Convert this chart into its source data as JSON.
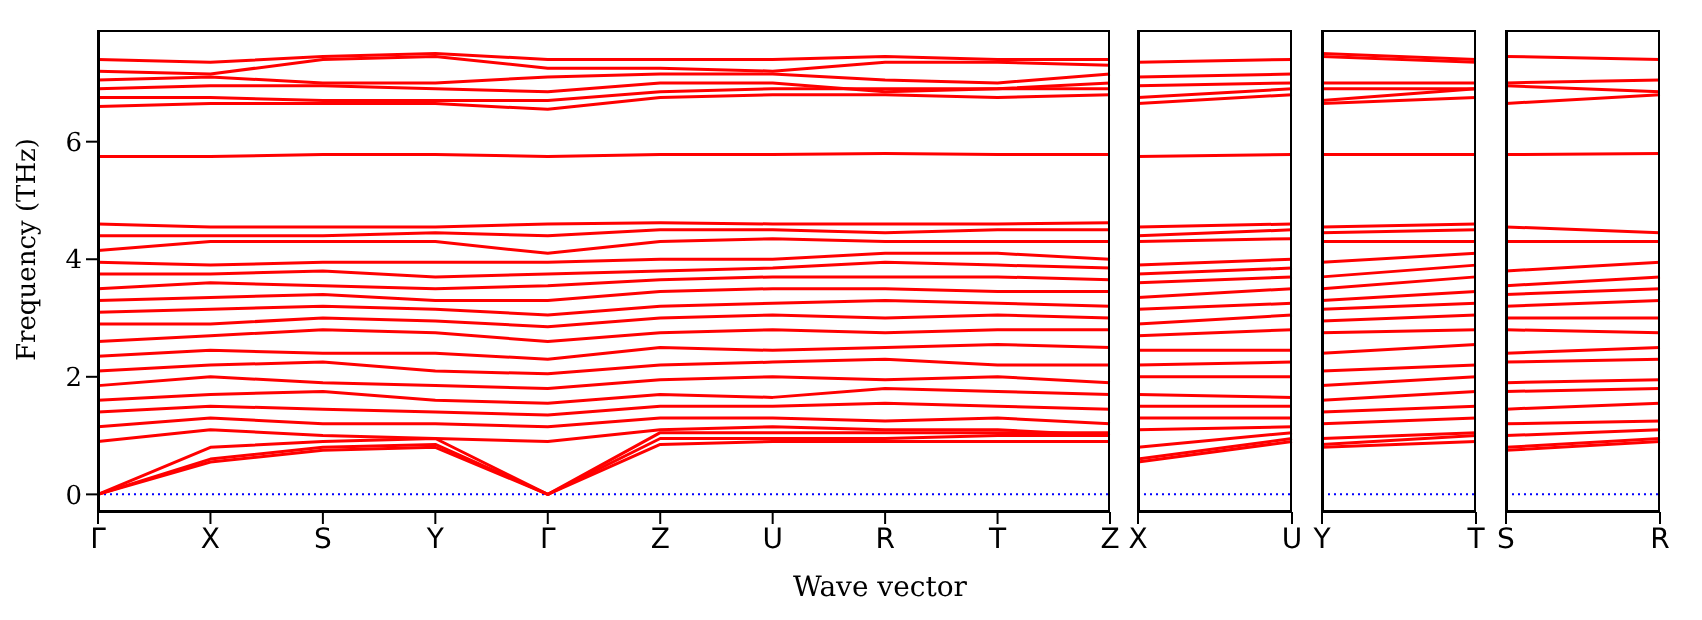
{
  "chart_data": [
    {
      "type": "line",
      "ylabel": "Frequency (THz)",
      "xlabel": "Wave vector",
      "categories": [
        "Γ",
        "X",
        "S",
        "Y",
        "Γ",
        "Z",
        "U",
        "R",
        "T",
        "Z"
      ],
      "ylim": [
        -0.3,
        7.9
      ],
      "yticks": [
        0,
        2,
        4,
        6
      ],
      "ref_lines": [
        {
          "axis": "y",
          "value": 0,
          "color": "#0000ff",
          "line_style": "dotted"
        }
      ],
      "series": [
        {
          "color": "#ff0000",
          "values": [
            0,
            0.55,
            0.75,
            0.8,
            0,
            0.85,
            0.9,
            0.9,
            0.9,
            0.9
          ]
        },
        {
          "color": "#ff0000",
          "values": [
            0,
            0.6,
            0.8,
            0.85,
            0,
            0.95,
            0.95,
            0.95,
            1.0,
            1.0
          ]
        },
        {
          "color": "#ff0000",
          "values": [
            0,
            0.8,
            0.9,
            0.95,
            0,
            1.05,
            1.05,
            1.05,
            1.05,
            1.05
          ]
        },
        {
          "color": "#ff0000",
          "values": [
            0.9,
            1.1,
            1.0,
            0.95,
            0.9,
            1.1,
            1.15,
            1.1,
            1.1,
            1.0
          ]
        },
        {
          "color": "#ff0000",
          "values": [
            1.15,
            1.3,
            1.2,
            1.2,
            1.15,
            1.3,
            1.3,
            1.25,
            1.3,
            1.2
          ]
        },
        {
          "color": "#ff0000",
          "values": [
            1.4,
            1.5,
            1.45,
            1.4,
            1.35,
            1.5,
            1.5,
            1.55,
            1.5,
            1.45
          ]
        },
        {
          "color": "#ff0000",
          "values": [
            1.6,
            1.7,
            1.75,
            1.6,
            1.55,
            1.7,
            1.65,
            1.8,
            1.75,
            1.7
          ]
        },
        {
          "color": "#ff0000",
          "values": [
            1.85,
            2.0,
            1.9,
            1.85,
            1.8,
            1.95,
            2.0,
            1.95,
            2.0,
            1.9
          ]
        },
        {
          "color": "#ff0000",
          "values": [
            2.1,
            2.2,
            2.25,
            2.1,
            2.05,
            2.2,
            2.25,
            2.3,
            2.2,
            2.2
          ]
        },
        {
          "color": "#ff0000",
          "values": [
            2.35,
            2.45,
            2.4,
            2.4,
            2.3,
            2.5,
            2.45,
            2.5,
            2.55,
            2.5
          ]
        },
        {
          "color": "#ff0000",
          "values": [
            2.6,
            2.7,
            2.8,
            2.75,
            2.6,
            2.75,
            2.8,
            2.75,
            2.8,
            2.8
          ]
        },
        {
          "color": "#ff0000",
          "values": [
            2.9,
            2.9,
            3.0,
            2.95,
            2.85,
            3.0,
            3.05,
            3.0,
            3.05,
            3.0
          ]
        },
        {
          "color": "#ff0000",
          "values": [
            3.1,
            3.15,
            3.2,
            3.15,
            3.05,
            3.2,
            3.25,
            3.3,
            3.25,
            3.2
          ]
        },
        {
          "color": "#ff0000",
          "values": [
            3.3,
            3.35,
            3.4,
            3.3,
            3.3,
            3.45,
            3.5,
            3.5,
            3.45,
            3.45
          ]
        },
        {
          "color": "#ff0000",
          "values": [
            3.5,
            3.6,
            3.55,
            3.5,
            3.55,
            3.65,
            3.7,
            3.7,
            3.7,
            3.65
          ]
        },
        {
          "color": "#ff0000",
          "values": [
            3.75,
            3.75,
            3.8,
            3.7,
            3.75,
            3.8,
            3.85,
            3.95,
            3.9,
            3.85
          ]
        },
        {
          "color": "#ff0000",
          "values": [
            3.95,
            3.9,
            3.95,
            3.95,
            3.95,
            4.0,
            4.0,
            4.1,
            4.1,
            4.0
          ]
        },
        {
          "color": "#ff0000",
          "values": [
            4.15,
            4.3,
            4.3,
            4.3,
            4.1,
            4.3,
            4.35,
            4.3,
            4.3,
            4.3
          ]
        },
        {
          "color": "#ff0000",
          "values": [
            4.4,
            4.4,
            4.4,
            4.45,
            4.4,
            4.5,
            4.5,
            4.45,
            4.5,
            4.5
          ]
        },
        {
          "color": "#ff0000",
          "values": [
            4.6,
            4.55,
            4.55,
            4.55,
            4.6,
            4.62,
            4.6,
            4.6,
            4.6,
            4.62
          ]
        },
        {
          "color": "#ff0000",
          "values": [
            5.75,
            5.75,
            5.78,
            5.78,
            5.75,
            5.78,
            5.78,
            5.8,
            5.78,
            5.78
          ]
        },
        {
          "color": "#ff0000",
          "values": [
            6.6,
            6.65,
            6.65,
            6.65,
            6.55,
            6.75,
            6.8,
            6.8,
            6.75,
            6.8
          ]
        },
        {
          "color": "#ff0000",
          "values": [
            6.75,
            6.75,
            6.7,
            6.7,
            6.7,
            6.85,
            6.9,
            6.9,
            6.9,
            6.9
          ]
        },
        {
          "color": "#ff0000",
          "values": [
            6.9,
            6.95,
            6.95,
            6.9,
            6.85,
            7.0,
            7.0,
            6.85,
            6.9,
            7.0
          ]
        },
        {
          "color": "#ff0000",
          "values": [
            7.05,
            7.1,
            7.0,
            7.0,
            7.1,
            7.15,
            7.15,
            7.05,
            7.0,
            7.15
          ]
        },
        {
          "color": "#ff0000",
          "values": [
            7.2,
            7.15,
            7.4,
            7.45,
            7.25,
            7.25,
            7.2,
            7.35,
            7.35,
            7.3
          ]
        },
        {
          "color": "#ff0000",
          "values": [
            7.4,
            7.35,
            7.45,
            7.5,
            7.4,
            7.4,
            7.4,
            7.45,
            7.4,
            7.4
          ]
        }
      ]
    },
    {
      "type": "line",
      "categories": [
        "X",
        "U"
      ],
      "tick_labels": "x",
      "ylim": [
        -0.3,
        7.9
      ],
      "ref_lines": [
        {
          "axis": "y",
          "value": 0,
          "color": "#0000ff",
          "line_style": "dotted"
        }
      ],
      "series": [
        {
          "color": "#ff0000",
          "values": [
            0.55,
            0.9
          ]
        },
        {
          "color": "#ff0000",
          "values": [
            0.6,
            0.95
          ]
        },
        {
          "color": "#ff0000",
          "values": [
            0.8,
            1.05
          ]
        },
        {
          "color": "#ff0000",
          "values": [
            1.1,
            1.15
          ]
        },
        {
          "color": "#ff0000",
          "values": [
            1.3,
            1.3
          ]
        },
        {
          "color": "#ff0000",
          "values": [
            1.5,
            1.5
          ]
        },
        {
          "color": "#ff0000",
          "values": [
            1.7,
            1.65
          ]
        },
        {
          "color": "#ff0000",
          "values": [
            2.0,
            2.0
          ]
        },
        {
          "color": "#ff0000",
          "values": [
            2.2,
            2.25
          ]
        },
        {
          "color": "#ff0000",
          "values": [
            2.45,
            2.45
          ]
        },
        {
          "color": "#ff0000",
          "values": [
            2.7,
            2.8
          ]
        },
        {
          "color": "#ff0000",
          "values": [
            2.9,
            3.05
          ]
        },
        {
          "color": "#ff0000",
          "values": [
            3.15,
            3.25
          ]
        },
        {
          "color": "#ff0000",
          "values": [
            3.35,
            3.5
          ]
        },
        {
          "color": "#ff0000",
          "values": [
            3.6,
            3.7
          ]
        },
        {
          "color": "#ff0000",
          "values": [
            3.75,
            3.85
          ]
        },
        {
          "color": "#ff0000",
          "values": [
            3.9,
            4.0
          ]
        },
        {
          "color": "#ff0000",
          "values": [
            4.3,
            4.35
          ]
        },
        {
          "color": "#ff0000",
          "values": [
            4.4,
            4.5
          ]
        },
        {
          "color": "#ff0000",
          "values": [
            4.55,
            4.6
          ]
        },
        {
          "color": "#ff0000",
          "values": [
            5.75,
            5.78
          ]
        },
        {
          "color": "#ff0000",
          "values": [
            6.65,
            6.8
          ]
        },
        {
          "color": "#ff0000",
          "values": [
            6.75,
            6.9
          ]
        },
        {
          "color": "#ff0000",
          "values": [
            6.95,
            7.0
          ]
        },
        {
          "color": "#ff0000",
          "values": [
            7.1,
            7.15
          ]
        },
        {
          "color": "#ff0000",
          "values": [
            7.35,
            7.4
          ]
        }
      ]
    },
    {
      "type": "line",
      "categories": [
        "Y",
        "T"
      ],
      "tick_labels": "x",
      "ylim": [
        -0.3,
        7.9
      ],
      "ref_lines": [
        {
          "axis": "y",
          "value": 0,
          "color": "#0000ff",
          "line_style": "dotted"
        }
      ],
      "series": [
        {
          "color": "#ff0000",
          "values": [
            0.8,
            0.9
          ]
        },
        {
          "color": "#ff0000",
          "values": [
            0.85,
            1.0
          ]
        },
        {
          "color": "#ff0000",
          "values": [
            0.95,
            1.05
          ]
        },
        {
          "color": "#ff0000",
          "values": [
            1.2,
            1.3
          ]
        },
        {
          "color": "#ff0000",
          "values": [
            1.4,
            1.5
          ]
        },
        {
          "color": "#ff0000",
          "values": [
            1.6,
            1.75
          ]
        },
        {
          "color": "#ff0000",
          "values": [
            1.85,
            2.0
          ]
        },
        {
          "color": "#ff0000",
          "values": [
            2.1,
            2.2
          ]
        },
        {
          "color": "#ff0000",
          "values": [
            2.4,
            2.55
          ]
        },
        {
          "color": "#ff0000",
          "values": [
            2.75,
            2.8
          ]
        },
        {
          "color": "#ff0000",
          "values": [
            2.95,
            3.05
          ]
        },
        {
          "color": "#ff0000",
          "values": [
            3.15,
            3.25
          ]
        },
        {
          "color": "#ff0000",
          "values": [
            3.3,
            3.45
          ]
        },
        {
          "color": "#ff0000",
          "values": [
            3.5,
            3.7
          ]
        },
        {
          "color": "#ff0000",
          "values": [
            3.7,
            3.9
          ]
        },
        {
          "color": "#ff0000",
          "values": [
            3.95,
            4.1
          ]
        },
        {
          "color": "#ff0000",
          "values": [
            4.3,
            4.3
          ]
        },
        {
          "color": "#ff0000",
          "values": [
            4.45,
            4.5
          ]
        },
        {
          "color": "#ff0000",
          "values": [
            4.55,
            4.6
          ]
        },
        {
          "color": "#ff0000",
          "values": [
            5.78,
            5.78
          ]
        },
        {
          "color": "#ff0000",
          "values": [
            6.65,
            6.75
          ]
        },
        {
          "color": "#ff0000",
          "values": [
            6.7,
            6.9
          ]
        },
        {
          "color": "#ff0000",
          "values": [
            6.9,
            6.9
          ]
        },
        {
          "color": "#ff0000",
          "values": [
            7.0,
            7.0
          ]
        },
        {
          "color": "#ff0000",
          "values": [
            7.45,
            7.35
          ]
        },
        {
          "color": "#ff0000",
          "values": [
            7.5,
            7.4
          ]
        }
      ]
    },
    {
      "type": "line",
      "categories": [
        "S",
        "R"
      ],
      "tick_labels": "x",
      "ylim": [
        -0.3,
        7.9
      ],
      "ref_lines": [
        {
          "axis": "y",
          "value": 0,
          "color": "#0000ff",
          "line_style": "dotted"
        }
      ],
      "series": [
        {
          "color": "#ff0000",
          "values": [
            0.75,
            0.9
          ]
        },
        {
          "color": "#ff0000",
          "values": [
            0.8,
            0.95
          ]
        },
        {
          "color": "#ff0000",
          "values": [
            1.0,
            1.1
          ]
        },
        {
          "color": "#ff0000",
          "values": [
            1.2,
            1.25
          ]
        },
        {
          "color": "#ff0000",
          "values": [
            1.45,
            1.55
          ]
        },
        {
          "color": "#ff0000",
          "values": [
            1.75,
            1.8
          ]
        },
        {
          "color": "#ff0000",
          "values": [
            1.9,
            1.95
          ]
        },
        {
          "color": "#ff0000",
          "values": [
            2.25,
            2.3
          ]
        },
        {
          "color": "#ff0000",
          "values": [
            2.4,
            2.5
          ]
        },
        {
          "color": "#ff0000",
          "values": [
            2.8,
            2.75
          ]
        },
        {
          "color": "#ff0000",
          "values": [
            3.0,
            3.0
          ]
        },
        {
          "color": "#ff0000",
          "values": [
            3.2,
            3.3
          ]
        },
        {
          "color": "#ff0000",
          "values": [
            3.4,
            3.5
          ]
        },
        {
          "color": "#ff0000",
          "values": [
            3.55,
            3.7
          ]
        },
        {
          "color": "#ff0000",
          "values": [
            3.8,
            3.95
          ]
        },
        {
          "color": "#ff0000",
          "values": [
            4.3,
            4.3
          ]
        },
        {
          "color": "#ff0000",
          "values": [
            4.55,
            4.45
          ]
        },
        {
          "color": "#ff0000",
          "values": [
            5.78,
            5.8
          ]
        },
        {
          "color": "#ff0000",
          "values": [
            6.65,
            6.8
          ]
        },
        {
          "color": "#ff0000",
          "values": [
            6.95,
            6.85
          ]
        },
        {
          "color": "#ff0000",
          "values": [
            7.0,
            7.05
          ]
        },
        {
          "color": "#ff0000",
          "values": [
            7.45,
            7.4
          ]
        }
      ]
    }
  ]
}
